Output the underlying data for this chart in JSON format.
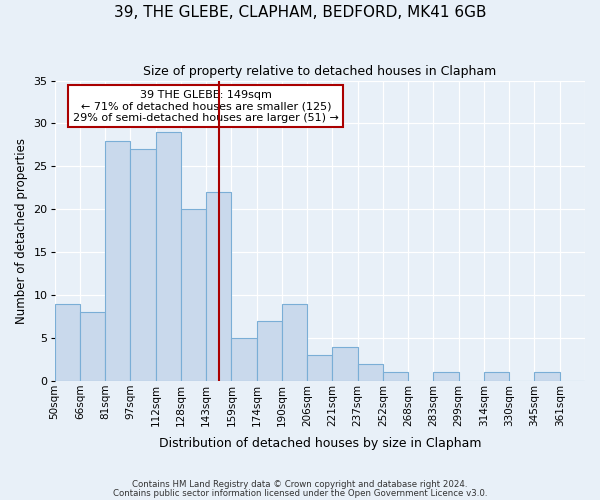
{
  "title": "39, THE GLEBE, CLAPHAM, BEDFORD, MK41 6GB",
  "subtitle": "Size of property relative to detached houses in Clapham",
  "xlabel": "Distribution of detached houses by size in Clapham",
  "ylabel": "Number of detached properties",
  "categories": [
    "50sqm",
    "66sqm",
    "81sqm",
    "97sqm",
    "112sqm",
    "128sqm",
    "143sqm",
    "159sqm",
    "174sqm",
    "190sqm",
    "206sqm",
    "221sqm",
    "237sqm",
    "252sqm",
    "268sqm",
    "283sqm",
    "299sqm",
    "314sqm",
    "330sqm",
    "345sqm",
    "361sqm"
  ],
  "values": [
    9,
    8,
    28,
    27,
    29,
    20,
    22,
    5,
    7,
    9,
    3,
    4,
    2,
    1,
    0,
    1,
    0,
    1,
    0,
    1,
    0
  ],
  "bar_color": "#c9d9ec",
  "bar_edge_color": "#7aaed6",
  "background_color": "#e8f0f8",
  "vline_pos": 6,
  "vline_color": "#aa0000",
  "ylim": [
    0,
    35
  ],
  "yticks": [
    0,
    5,
    10,
    15,
    20,
    25,
    30,
    35
  ],
  "annotation_title": "39 THE GLEBE: 149sqm",
  "annotation_line1": "← 71% of detached houses are smaller (125)",
  "annotation_line2": "29% of semi-detached houses are larger (51) →",
  "annotation_box_color": "#ffffff",
  "annotation_border_color": "#aa0000",
  "footer1": "Contains HM Land Registry data © Crown copyright and database right 2024.",
  "footer2": "Contains public sector information licensed under the Open Government Licence v3.0."
}
